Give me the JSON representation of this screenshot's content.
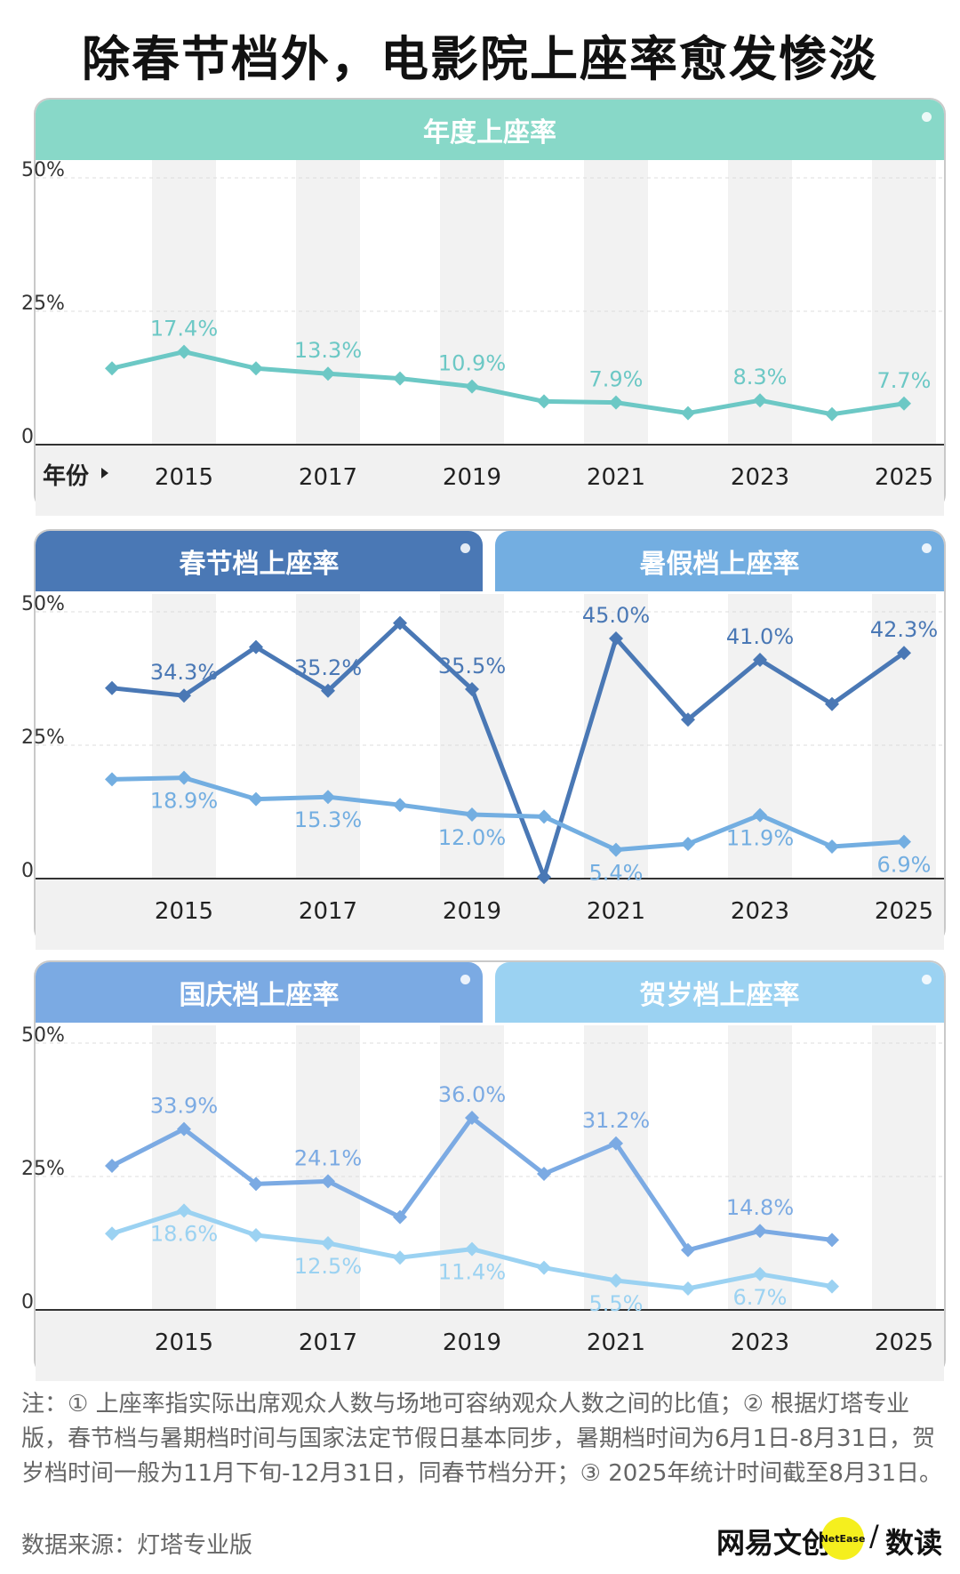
{
  "title": "除春节档外，电影院上座率愈发惨淡",
  "x_axis_label": "年份",
  "colors": {
    "annual": "#6cc8c5",
    "annual_tab": "#88d8c8",
    "spring": "#4a78b5",
    "summer": "#73aee1",
    "national": "#7baae3",
    "newyear": "#9bd2f2"
  },
  "panels": [
    {
      "tabs": [
        {
          "label": "年度上座率"
        }
      ]
    },
    {
      "tabs": [
        {
          "label": "春节档上座率"
        },
        {
          "label": "暑假档上座率"
        }
      ]
    },
    {
      "tabs": [
        {
          "label": "国庆档上座率"
        },
        {
          "label": "贺岁档上座率"
        }
      ]
    }
  ],
  "chart_data": [
    {
      "type": "line",
      "title": "年度上座率",
      "xlabel": "年份",
      "ylabel": "",
      "x": [
        2014,
        2015,
        2016,
        2017,
        2018,
        2019,
        2020,
        2021,
        2022,
        2023,
        2024,
        2025
      ],
      "tick_labels": [
        "2015",
        "2017",
        "2019",
        "2021",
        "2023",
        "2025"
      ],
      "y_ticks": [
        "0",
        "25%",
        "50%"
      ],
      "ylim": [
        0,
        50
      ],
      "series": [
        {
          "name": "年度上座率",
          "values": [
            14.3,
            17.4,
            14.3,
            13.3,
            12.4,
            10.9,
            8.1,
            7.9,
            5.9,
            8.3,
            5.7,
            7.7
          ],
          "labels": [
            "",
            "17.4%",
            "",
            "13.3%",
            "",
            "10.9%",
            "",
            "7.9%",
            "",
            "8.3%",
            "",
            "7.7%"
          ]
        }
      ]
    },
    {
      "type": "line",
      "title": "春节档上座率 / 暑假档上座率",
      "xlabel": "",
      "ylabel": "",
      "x": [
        2014,
        2015,
        2016,
        2017,
        2018,
        2019,
        2020,
        2021,
        2022,
        2023,
        2024,
        2025
      ],
      "tick_labels": [
        "2015",
        "2017",
        "2019",
        "2021",
        "2023",
        "2025"
      ],
      "y_ticks": [
        "0",
        "25%",
        "50%"
      ],
      "ylim": [
        0,
        50
      ],
      "series": [
        {
          "name": "春节档上座率",
          "values": [
            35.7,
            34.3,
            43.4,
            35.2,
            47.9,
            35.5,
            0.3,
            45.0,
            29.8,
            41.0,
            32.7,
            42.3
          ],
          "labels": [
            "",
            "34.3%",
            "",
            "35.2%",
            "",
            "35.5%",
            "",
            "45.0%",
            "",
            "41.0%",
            "",
            "42.3%"
          ]
        },
        {
          "name": "暑假档上座率",
          "values": [
            18.6,
            18.9,
            14.9,
            15.3,
            13.8,
            12.0,
            11.6,
            5.4,
            6.5,
            11.9,
            6.0,
            6.9
          ],
          "labels": [
            "",
            "18.9%",
            "",
            "15.3%",
            "",
            "12.0%",
            "",
            "5.4%",
            "",
            "11.9%",
            "",
            "6.9%"
          ]
        }
      ]
    },
    {
      "type": "line",
      "title": "国庆档上座率 / 贺岁档上座率",
      "xlabel": "",
      "ylabel": "",
      "x": [
        2014,
        2015,
        2016,
        2017,
        2018,
        2019,
        2020,
        2021,
        2022,
        2023,
        2024,
        2025
      ],
      "tick_labels": [
        "2015",
        "2017",
        "2019",
        "2021",
        "2023",
        "2025"
      ],
      "y_ticks": [
        "0",
        "25%",
        "50%"
      ],
      "ylim": [
        0,
        50
      ],
      "series": [
        {
          "name": "国庆档上座率",
          "values": [
            27.0,
            33.9,
            23.6,
            24.1,
            17.4,
            36.0,
            25.5,
            31.2,
            11.2,
            14.8,
            13.1,
            null
          ],
          "labels": [
            "",
            "33.9%",
            "",
            "24.1%",
            "",
            "36.0%",
            "",
            "31.2%",
            "",
            "14.8%",
            "",
            ""
          ]
        },
        {
          "name": "贺岁档上座率",
          "values": [
            14.3,
            18.6,
            14.0,
            12.5,
            9.8,
            11.4,
            7.9,
            5.5,
            4.0,
            6.7,
            4.4,
            null
          ],
          "labels": [
            "",
            "18.6%",
            "",
            "12.5%",
            "",
            "11.4%",
            "",
            "5.5%",
            "",
            "6.7%",
            "",
            ""
          ]
        }
      ]
    }
  ],
  "footnote": "注：① 上座率指实际出席观众人数与场地可容纳观众人数之间的比值；② 根据灯塔专业版，春节档与暑期档时间与国家法定节假日基本同步，暑期档时间为6月1日-8月31日，贺岁档时间一般为11月下旬-12月31日，同春节档分开；③ 2025年统计时间截至8月31日。",
  "source": "数据来源：灯塔专业版",
  "logo": {
    "text_left": "网易文创",
    "badge": "NetEase",
    "separator": "/",
    "text_right": "数读"
  }
}
